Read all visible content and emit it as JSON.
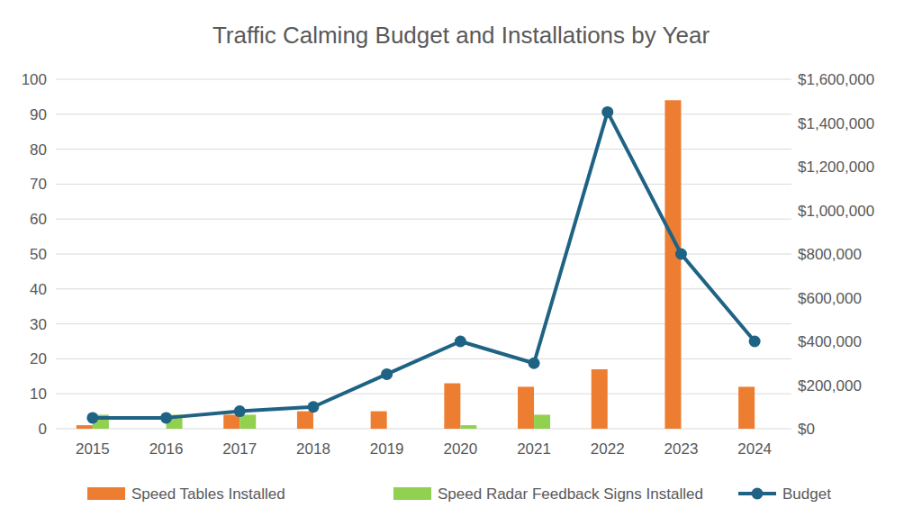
{
  "chart_data": {
    "type": "bar",
    "title": "Traffic Calming Budget and Installations by Year",
    "categories": [
      "2015",
      "2016",
      "2017",
      "2018",
      "2019",
      "2020",
      "2021",
      "2022",
      "2023",
      "2024"
    ],
    "series": [
      {
        "name": "Speed Tables Installed",
        "type": "bar",
        "color": "#ed7d31",
        "values": [
          1,
          0,
          4,
          5,
          5,
          13,
          12,
          17,
          94,
          12
        ]
      },
      {
        "name": "Speed Radar Feedback Signs Installed",
        "type": "bar",
        "color": "#92d050",
        "values": [
          4,
          4,
          4,
          0,
          0,
          1,
          4,
          0,
          0,
          0
        ]
      },
      {
        "name": "Budget",
        "type": "line",
        "axis": "y2",
        "color": "#1f6384",
        "marker": "circle",
        "line_style": "solid",
        "values": [
          50000,
          50000,
          80000,
          100000,
          250000,
          400000,
          300000,
          1450000,
          800000,
          400000
        ]
      }
    ],
    "ylim": [
      0,
      100
    ],
    "yticks": [
      0,
      10,
      20,
      30,
      40,
      50,
      60,
      70,
      80,
      90,
      100
    ],
    "y2lim": [
      0,
      1600000
    ],
    "y2ticks": [
      {
        "value": 0,
        "label": "$0"
      },
      {
        "value": 200000,
        "label": "$200,000"
      },
      {
        "value": 400000,
        "label": "$400,000"
      },
      {
        "value": 600000,
        "label": "$600,000"
      },
      {
        "value": 800000,
        "label": "$800,000"
      },
      {
        "value": 1000000,
        "label": "$1,000,000"
      },
      {
        "value": 1200000,
        "label": "$1,200,000"
      },
      {
        "value": 1400000,
        "label": "$1,400,000"
      },
      {
        "value": 1600000,
        "label": "$1,600,000"
      }
    ],
    "grid": true,
    "legend": "bottom"
  }
}
